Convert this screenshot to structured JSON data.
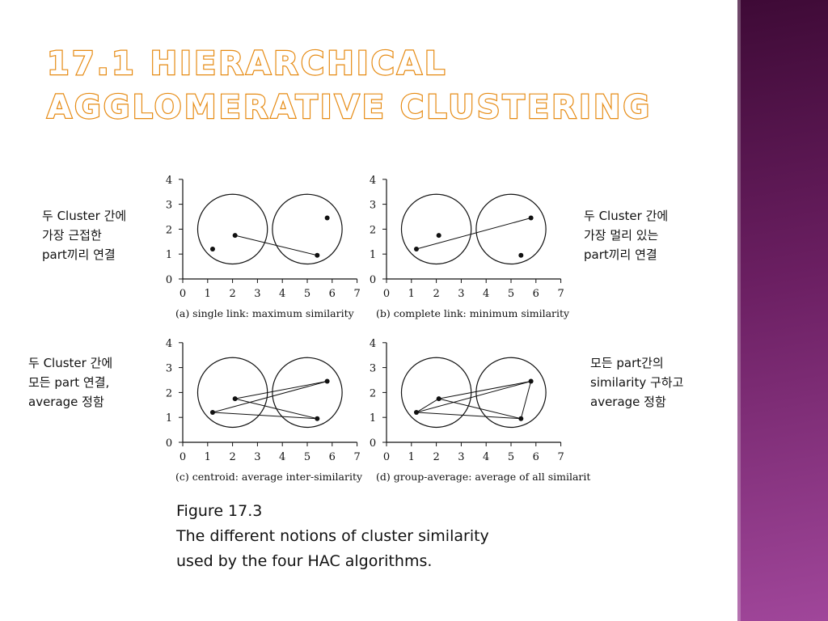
{
  "slide": {
    "title_line1": "17.1 Hierarchical",
    "title_line2": "Agglomerative Clustering",
    "accent_color": "#e68a12",
    "sidebar_color": "#6b1f62"
  },
  "annotations": {
    "single_link": [
      "두 Cluster 간에",
      "가장 근접한",
      "part끼리 연결"
    ],
    "complete_link": [
      "두 Cluster 간에",
      "가장 멀리 있는",
      "part끼리 연결"
    ],
    "centroid": [
      "두 Cluster 간에",
      "모든 part 연결,",
      "average 정함"
    ],
    "group_average": [
      "모든 part간의",
      "similarity 구하고",
      "average 정함"
    ]
  },
  "caption": {
    "line1": "Figure 17.3",
    "line2": "The different notions of cluster similarity",
    "line3": "used by the four HAC algorithms."
  },
  "chart_data": [
    {
      "type": "scatter",
      "title": "(a) single link: maximum similarity",
      "xlim": [
        0,
        7
      ],
      "ylim": [
        0,
        4
      ],
      "x_ticks": [
        0,
        1,
        2,
        3,
        4,
        5,
        6,
        7
      ],
      "y_ticks": [
        0,
        1,
        2,
        3,
        4
      ],
      "clusters": [
        {
          "cx": 2.0,
          "cy": 2.0,
          "r": 1.4
        },
        {
          "cx": 5.0,
          "cy": 2.0,
          "r": 1.4
        }
      ],
      "points": [
        [
          1.2,
          1.2
        ],
        [
          2.1,
          1.75
        ],
        [
          5.4,
          0.95
        ],
        [
          5.8,
          2.45
        ]
      ],
      "links": [
        [
          1,
          2
        ]
      ]
    },
    {
      "type": "scatter",
      "title": "(b) complete link: minimum similarity",
      "xlim": [
        0,
        7
      ],
      "ylim": [
        0,
        4
      ],
      "x_ticks": [
        0,
        1,
        2,
        3,
        4,
        5,
        6,
        7
      ],
      "y_ticks": [
        0,
        1,
        2,
        3,
        4
      ],
      "clusters": [
        {
          "cx": 2.0,
          "cy": 2.0,
          "r": 1.4
        },
        {
          "cx": 5.0,
          "cy": 2.0,
          "r": 1.4
        }
      ],
      "points": [
        [
          1.2,
          1.2
        ],
        [
          2.1,
          1.75
        ],
        [
          5.4,
          0.95
        ],
        [
          5.8,
          2.45
        ]
      ],
      "links": [
        [
          0,
          3
        ]
      ]
    },
    {
      "type": "scatter",
      "title": "(c) centroid: average inter-similarity",
      "xlim": [
        0,
        7
      ],
      "ylim": [
        0,
        4
      ],
      "x_ticks": [
        0,
        1,
        2,
        3,
        4,
        5,
        6,
        7
      ],
      "y_ticks": [
        0,
        1,
        2,
        3,
        4
      ],
      "clusters": [
        {
          "cx": 2.0,
          "cy": 2.0,
          "r": 1.4
        },
        {
          "cx": 5.0,
          "cy": 2.0,
          "r": 1.4
        }
      ],
      "points": [
        [
          1.2,
          1.2
        ],
        [
          2.1,
          1.75
        ],
        [
          5.4,
          0.95
        ],
        [
          5.8,
          2.45
        ]
      ],
      "links": [
        [
          0,
          2
        ],
        [
          0,
          3
        ],
        [
          1,
          2
        ],
        [
          1,
          3
        ]
      ]
    },
    {
      "type": "scatter",
      "title": "(d) group-average: average of all similarities",
      "xlim": [
        0,
        7
      ],
      "ylim": [
        0,
        4
      ],
      "x_ticks": [
        0,
        1,
        2,
        3,
        4,
        5,
        6,
        7
      ],
      "y_ticks": [
        0,
        1,
        2,
        3,
        4
      ],
      "clusters": [
        {
          "cx": 2.0,
          "cy": 2.0,
          "r": 1.4
        },
        {
          "cx": 5.0,
          "cy": 2.0,
          "r": 1.4
        }
      ],
      "points": [
        [
          1.2,
          1.2
        ],
        [
          2.1,
          1.75
        ],
        [
          5.4,
          0.95
        ],
        [
          5.8,
          2.45
        ]
      ],
      "links": [
        [
          0,
          1
        ],
        [
          0,
          2
        ],
        [
          0,
          3
        ],
        [
          1,
          2
        ],
        [
          1,
          3
        ],
        [
          2,
          3
        ]
      ]
    }
  ]
}
